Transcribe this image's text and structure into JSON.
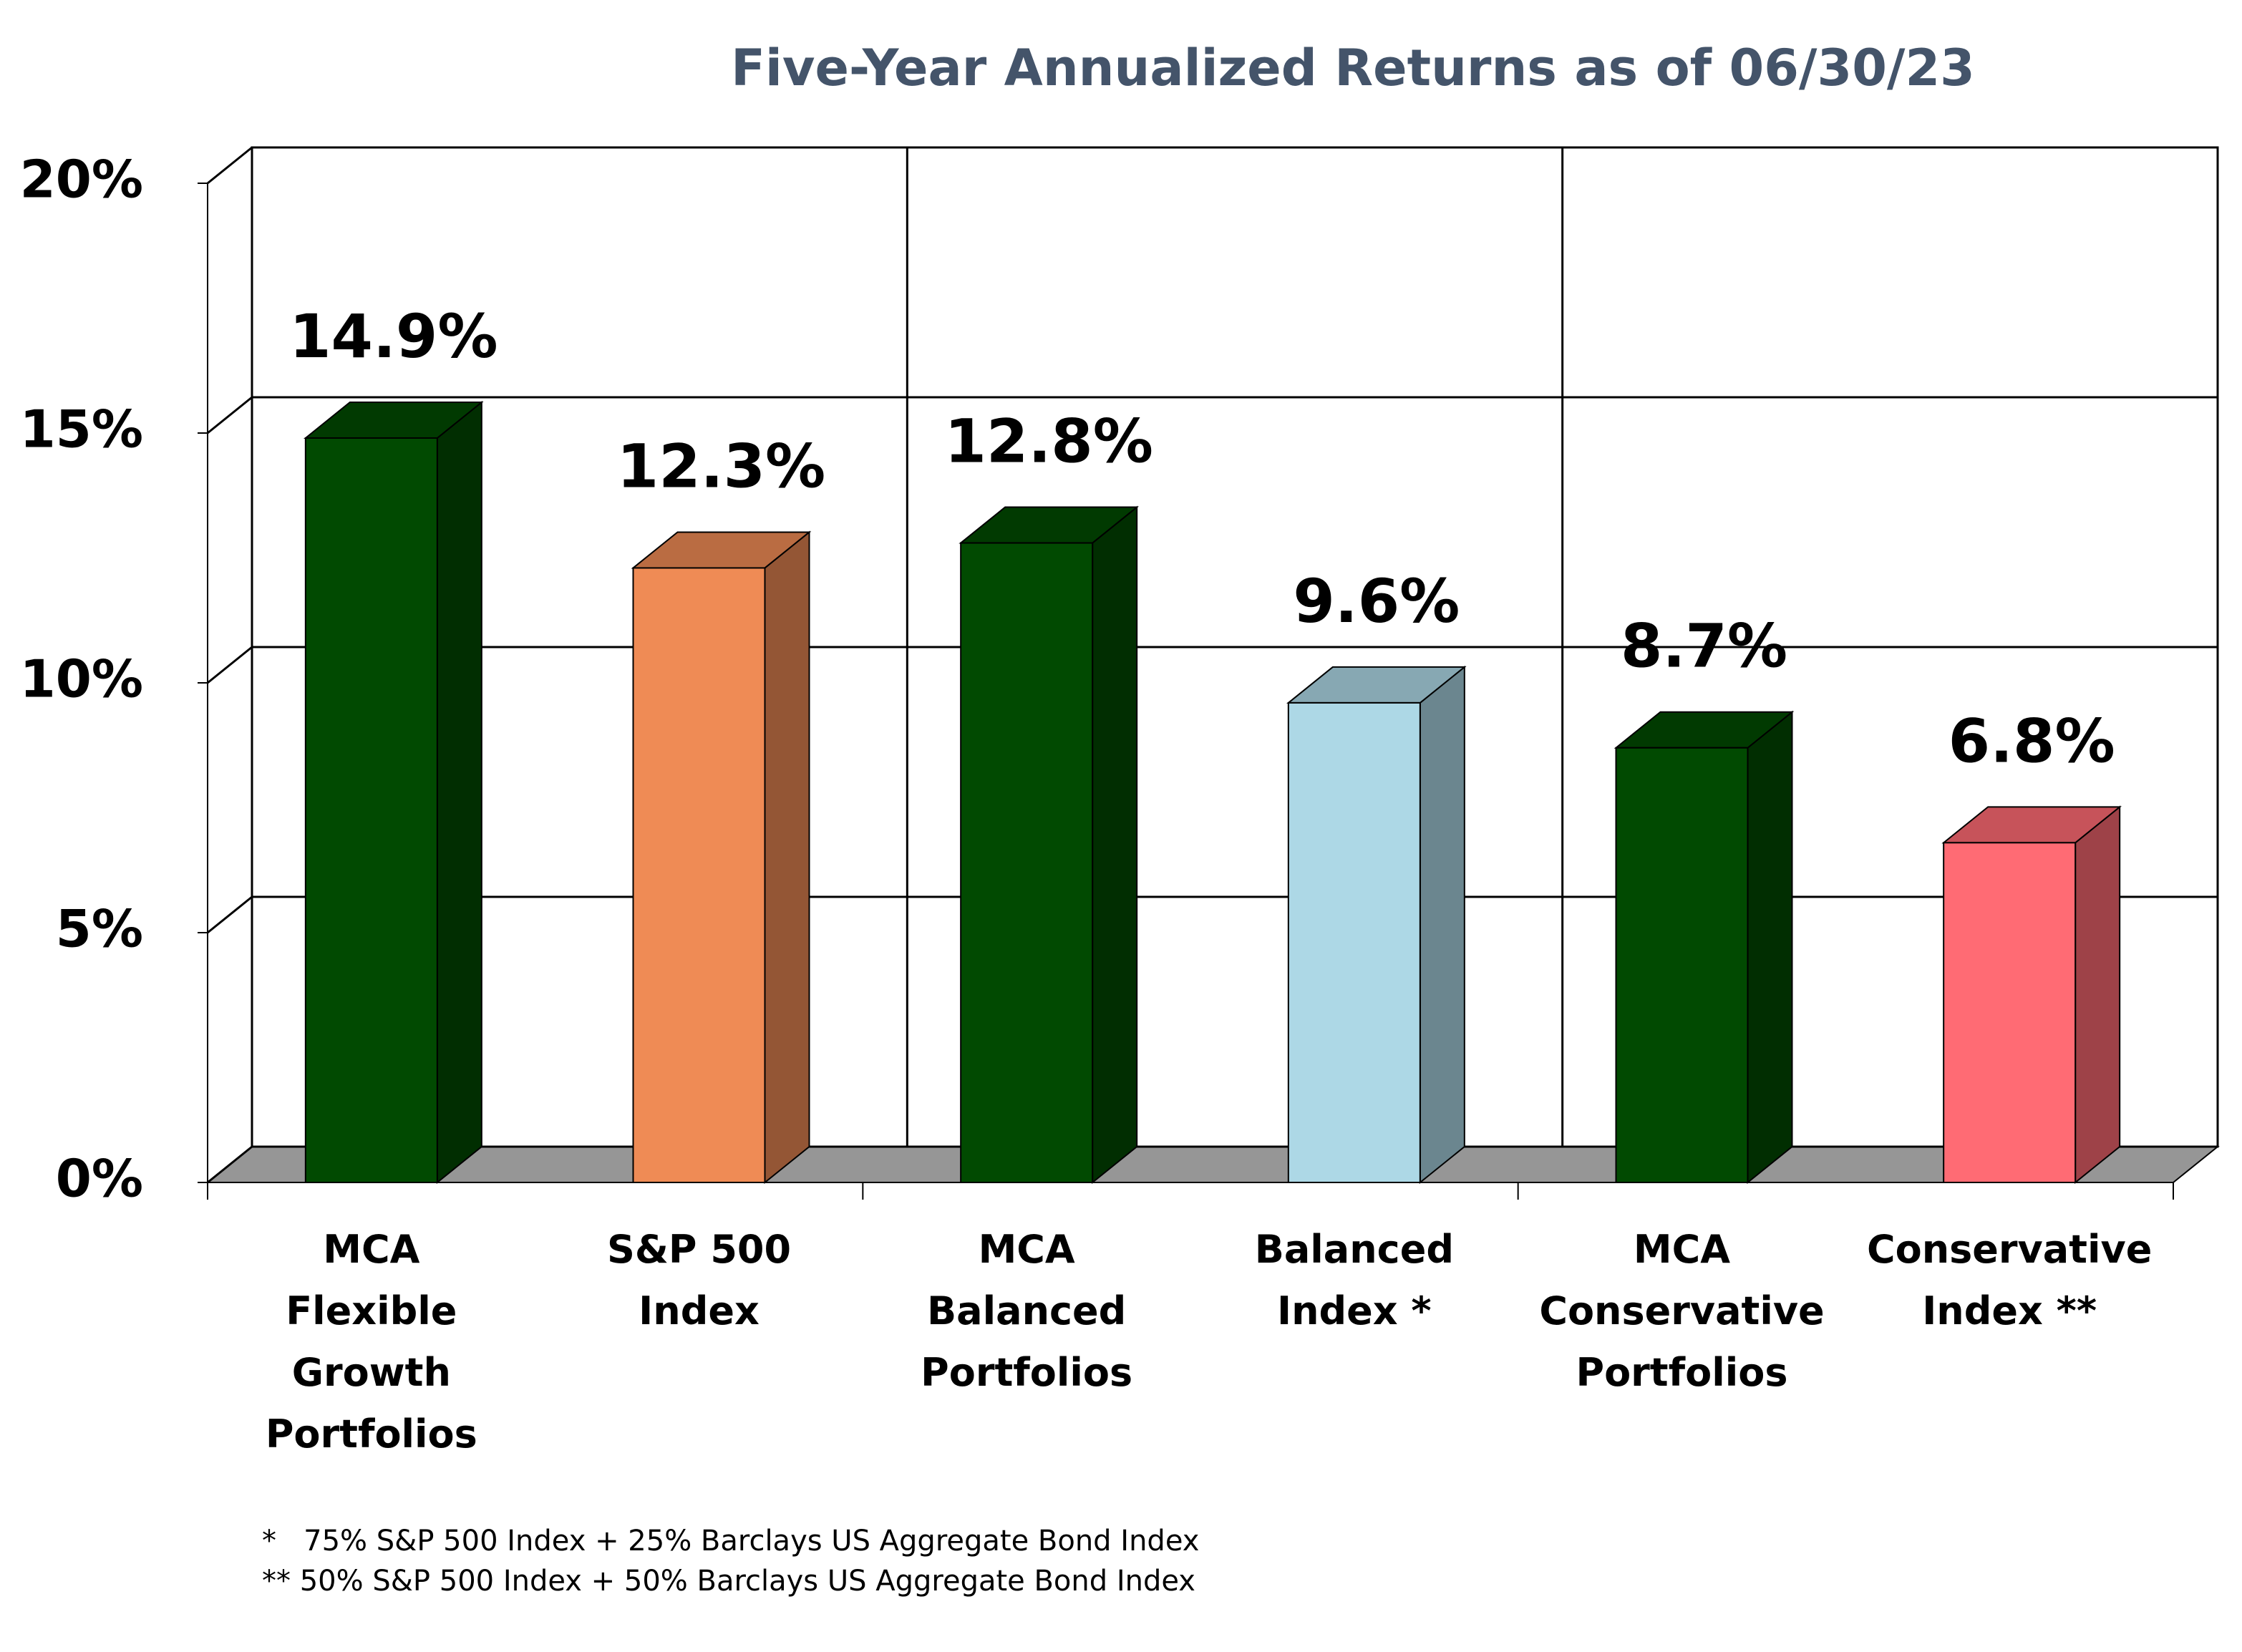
{
  "chart_data": {
    "type": "bar3d",
    "title": "Five-Year Annualized Returns as of 06/30/23",
    "categories": [
      "MCA\nFlexible\nGrowth\nPortfolios",
      "S&P 500\nIndex",
      "MCA\nBalanced\nPortfolios",
      "Balanced\nIndex *",
      "MCA\nConservative\nPortfolios",
      "Conservative\nIndex **"
    ],
    "values": [
      14.9,
      12.3,
      12.8,
      9.6,
      8.7,
      6.8
    ],
    "value_labels": [
      "14.9%",
      "12.3%",
      "12.8%",
      "9.6%",
      "8.7%",
      "6.8%"
    ],
    "colors": [
      "#014a01",
      "#ef8b55",
      "#014a01",
      "#add8e6",
      "#014a01",
      "#ff6b74"
    ],
    "ylim": [
      0,
      20
    ],
    "yticks": [
      {
        "value": 0,
        "label": "0%"
      },
      {
        "value": 5,
        "label": "5%"
      },
      {
        "value": 10,
        "label": "10%"
      },
      {
        "value": 15,
        "label": "15%"
      },
      {
        "value": 20,
        "label": "20%"
      }
    ],
    "grid": true,
    "footnotes": [
      "*   75% S&P 500 Index + 25% Barclays US Aggregate Bond Index",
      "** 50% S&P 500 Index + 50% Barclays US Aggregate Bond Index"
    ]
  }
}
